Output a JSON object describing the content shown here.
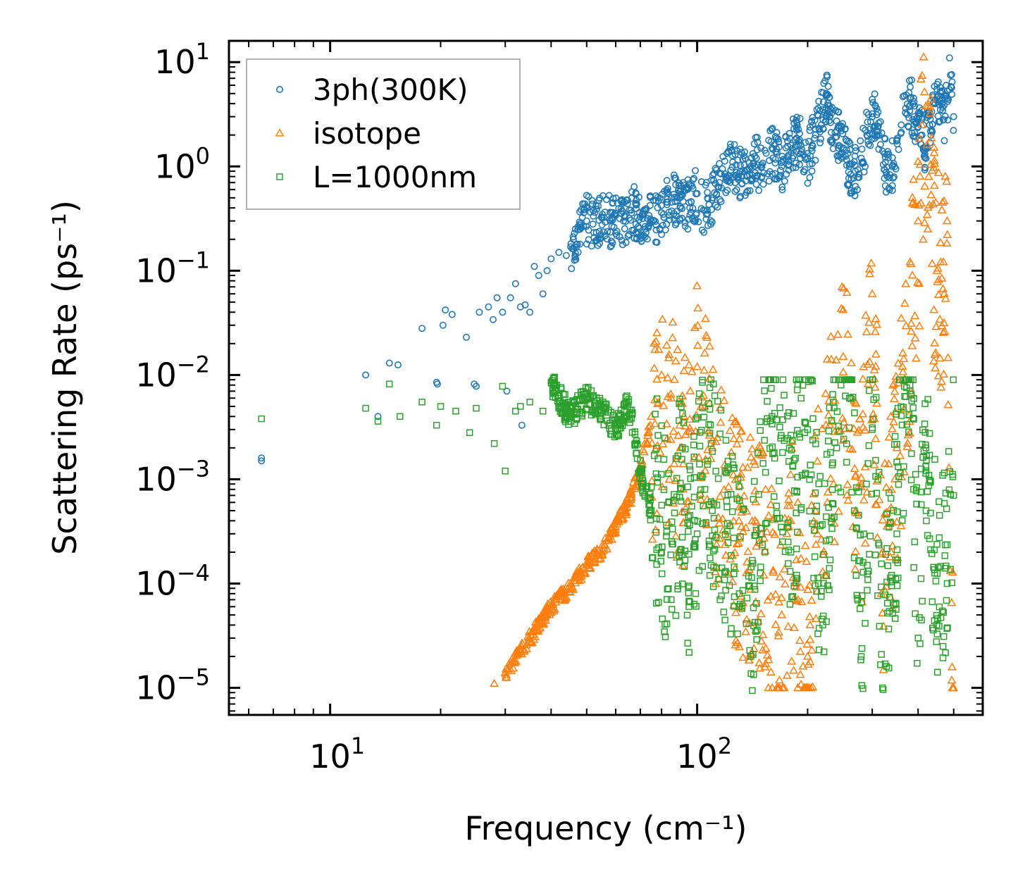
{
  "chart_data": {
    "type": "scatter",
    "xscale": "log",
    "yscale": "log",
    "xlim": [
      5.3,
      600
    ],
    "ylim": [
      5.5e-06,
      16
    ],
    "xlabel": "Frequency (cm⁻¹)",
    "ylabel": "Scattering Rate (ps⁻¹)",
    "x_ticks": [
      10,
      100
    ],
    "x_tick_labels": [
      {
        "base": "10",
        "exp": "1"
      },
      {
        "base": "10",
        "exp": "2"
      }
    ],
    "y_ticks": [
      10,
      1,
      0.1,
      0.01,
      0.001,
      0.0001,
      1e-05
    ],
    "y_tick_labels": [
      {
        "base": "10",
        "exp": "1"
      },
      {
        "base": "10",
        "exp": "0"
      },
      {
        "base": "10",
        "exp": "−1"
      },
      {
        "base": "10",
        "exp": "−2"
      },
      {
        "base": "10",
        "exp": "−3"
      },
      {
        "base": "10",
        "exp": "−4"
      },
      {
        "base": "10",
        "exp": "−5"
      }
    ],
    "legend_position": "top-left",
    "series": [
      {
        "name": "3ph(300K)",
        "marker": "circle",
        "color": "#1f77b4",
        "x": [
          6.5,
          6.5,
          12.5,
          13.5,
          14.5,
          15.3,
          17.8,
          19.5,
          19.6,
          20.3,
          20.6,
          21.5,
          23.5,
          24.7,
          25,
          25.5,
          27,
          27.8,
          28.5,
          29.5,
          30.3,
          31,
          32,
          33,
          33.3,
          34,
          35,
          36,
          37,
          38,
          39,
          40,
          42,
          44,
          46,
          48,
          50,
          52,
          55,
          58,
          60,
          63,
          66,
          70,
          75,
          80,
          85,
          90,
          95,
          100,
          105,
          110,
          115,
          120,
          125,
          130,
          135,
          140,
          145,
          150,
          160,
          170,
          180,
          190,
          200,
          210,
          220,
          225,
          230,
          240,
          250,
          260,
          270,
          280,
          290,
          300,
          310,
          320,
          330,
          340,
          350,
          360,
          370,
          380,
          390,
          400,
          410,
          420,
          430,
          440,
          450,
          460,
          470,
          480,
          490,
          500
        ],
        "y": [
          0.0015,
          0.0016,
          0.01,
          0.004,
          0.013,
          0.0125,
          0.028,
          0.0085,
          0.0082,
          0.03,
          0.042,
          0.038,
          0.023,
          0.0082,
          0.0078,
          0.04,
          0.045,
          0.034,
          0.055,
          0.04,
          0.007,
          0.055,
          0.075,
          0.045,
          0.0033,
          0.047,
          0.04,
          0.11,
          0.09,
          0.06,
          0.1,
          0.13,
          0.15,
          0.14,
          0.2,
          0.25,
          0.3,
          0.28,
          0.32,
          0.3,
          0.34,
          0.3,
          0.38,
          0.33,
          0.3,
          0.36,
          0.5,
          0.4,
          0.45,
          0.55,
          0.38,
          0.5,
          0.7,
          0.8,
          1.1,
          0.85,
          0.9,
          1.0,
          1.2,
          0.8,
          1.5,
          1.0,
          1.6,
          1.8,
          1.2,
          2.0,
          3.5,
          5.0,
          3.0,
          2.2,
          1.5,
          1.0,
          0.9,
          1.2,
          2.0,
          3.2,
          2.4,
          1.4,
          0.8,
          1.0,
          1.8,
          2.5,
          3.6,
          4.5,
          3.0,
          2.4,
          2.0,
          1.5,
          2.5,
          4.0,
          5.5,
          3.5,
          2.8,
          4.5,
          7.5,
          3.0
        ],
        "note": "dense band of points from ~50 to ~500 cm⁻¹"
      },
      {
        "name": "isotope",
        "marker": "triangle",
        "color": "#ff7f0e",
        "x": [
          28,
          30,
          33,
          36,
          40,
          45,
          50,
          55,
          60,
          65,
          70,
          75,
          80,
          85,
          90,
          100,
          105,
          110,
          130,
          150,
          170,
          180,
          200,
          210,
          250,
          280,
          300,
          320,
          350,
          400,
          410,
          420,
          450,
          480,
          500
        ],
        "y": [
          1.1e-05,
          1.4e-05,
          2.2e-05,
          3.5e-05,
          6e-05,
          9e-05,
          0.00015,
          0.0002,
          0.00035,
          0.0006,
          0.0012,
          0.004,
          0.01,
          0.006,
          0.002,
          0.012,
          0.005,
          0.002,
          0.0004,
          0.0003,
          5e-05,
          0.0004,
          2e-05,
          0.0005,
          0.015,
          0.0009,
          0.06,
          0.0002,
          0.002,
          0.3,
          2.5,
          3.8,
          0.1,
          0.3,
          1e-05
        ],
        "note": "dense band of points from ~28 to ~500 cm⁻¹"
      },
      {
        "name": "L=1000nm",
        "marker": "square",
        "color": "#2ca02c",
        "x": [
          6.5,
          12.5,
          13.5,
          14.5,
          15.5,
          17.8,
          19.5,
          20,
          22,
          24,
          25,
          28,
          29.5,
          30,
          32,
          33,
          35,
          38,
          40,
          45,
          50,
          55,
          60,
          65,
          70,
          75,
          80,
          85,
          90,
          95,
          100,
          105,
          110,
          130,
          140,
          150,
          160,
          180,
          200,
          220,
          240,
          260,
          280,
          300,
          320,
          350,
          380,
          400,
          420,
          450,
          480,
          500
        ],
        "y": [
          0.0038,
          0.0048,
          0.0036,
          0.0082,
          0.004,
          0.0055,
          0.0033,
          0.005,
          0.0045,
          0.0028,
          0.0048,
          0.0022,
          0.0078,
          0.0012,
          0.0045,
          0.005,
          0.0055,
          0.0045,
          0.0085,
          0.004,
          0.006,
          0.0045,
          0.003,
          0.0055,
          0.0012,
          0.0005,
          0.0002,
          7e-05,
          0.0008,
          6e-05,
          0.0003,
          0.0008,
          0.0005,
          6e-05,
          2e-05,
          0.0003,
          0.004,
          0.0002,
          0.003,
          4e-05,
          0.002,
          0.006,
          2e-05,
          0.003,
          1e-05,
          0.0003,
          0.008,
          3e-05,
          0.002,
          4e-05,
          0.0001,
          0.0007
        ],
        "note": "dense band of points from ~6.5 to ~500 cm⁻¹"
      }
    ]
  }
}
